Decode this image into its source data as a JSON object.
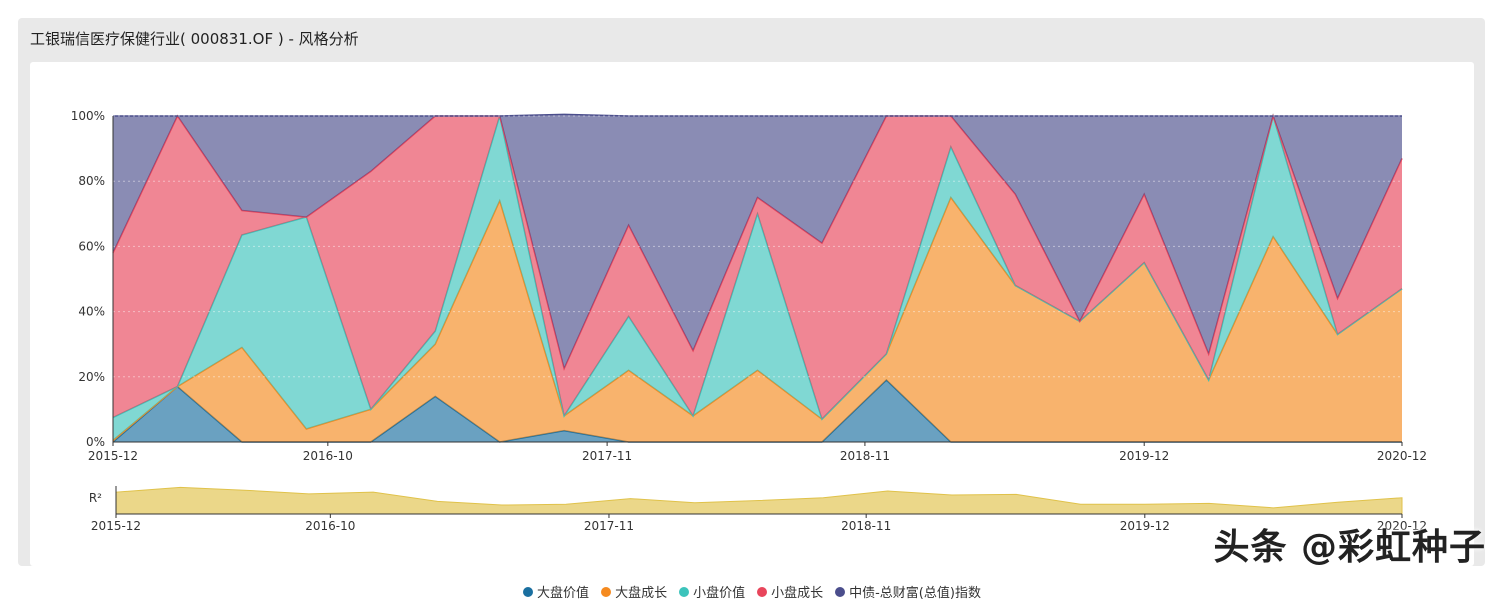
{
  "title": "工银瑞信医疗保健行业( 000831.OF ) - 风格分析",
  "watermark": "头条 @彩虹种子",
  "chart_data": {
    "type": "area",
    "stacked": true,
    "x": [
      "2015-12",
      "2016-03",
      "2016-06",
      "2016-09",
      "2016-12",
      "2017-03",
      "2017-06",
      "2017-09",
      "2017-12",
      "2018-03",
      "2018-06",
      "2018-09",
      "2018-12",
      "2019-03",
      "2019-06",
      "2019-09",
      "2019-12",
      "2020-03",
      "2020-06",
      "2020-09",
      "2020-12"
    ],
    "x_ticks": [
      "2015-12",
      "2016-10",
      "2017-11",
      "2018-11",
      "2019-12",
      "2020-12"
    ],
    "y_ticks": [
      "0%",
      "20%",
      "40%",
      "60%",
      "80%",
      "100%"
    ],
    "ylim": [
      0,
      100
    ],
    "grid": true,
    "legend_position": "bottom",
    "series": [
      {
        "name": "大盘价值",
        "color": "#1a6fa0",
        "values": [
          0,
          17,
          0,
          0,
          0,
          14,
          0,
          3.5,
          0,
          0,
          0,
          0,
          19,
          0,
          0,
          0,
          0,
          0,
          0,
          0,
          0
        ]
      },
      {
        "name": "大盘成长",
        "color": "#f58a1f",
        "values": [
          0.5,
          0,
          29,
          4,
          10,
          16,
          74,
          4.5,
          22,
          8,
          22,
          7,
          8,
          75,
          48,
          37,
          55,
          19,
          63,
          33,
          47
        ]
      },
      {
        "name": "小盘价值",
        "color": "#3cc3bb",
        "values": [
          7,
          0,
          34.5,
          65,
          0,
          4,
          26,
          0,
          16.5,
          0,
          48,
          0,
          0,
          15.5,
          0,
          0,
          0,
          0,
          37,
          0,
          0
        ]
      },
      {
        "name": "小盘成长",
        "color": "#e8455b",
        "values": [
          50.5,
          83,
          7.5,
          0,
          73,
          66,
          0,
          14.5,
          28,
          20,
          5,
          54,
          73,
          9.5,
          28,
          0,
          21,
          8,
          0,
          11,
          40
        ]
      },
      {
        "name": "中债-总财富(总值)指数",
        "color": "#4b4e8c",
        "values": [
          42,
          0,
          29,
          31,
          17,
          0,
          0,
          78,
          33.5,
          72,
          25,
          39,
          0,
          0,
          24,
          63,
          24,
          73,
          0,
          56,
          13
        ]
      }
    ],
    "r2": {
      "label": "R²",
      "color": "#e0c24a",
      "ylim": [
        0,
        1
      ],
      "values": [
        0.78,
        0.95,
        0.85,
        0.72,
        0.78,
        0.45,
        0.32,
        0.35,
        0.55,
        0.4,
        0.48,
        0.58,
        0.82,
        0.68,
        0.7,
        0.35,
        0.35,
        0.38,
        0.22,
        0.42,
        0.58
      ]
    }
  }
}
